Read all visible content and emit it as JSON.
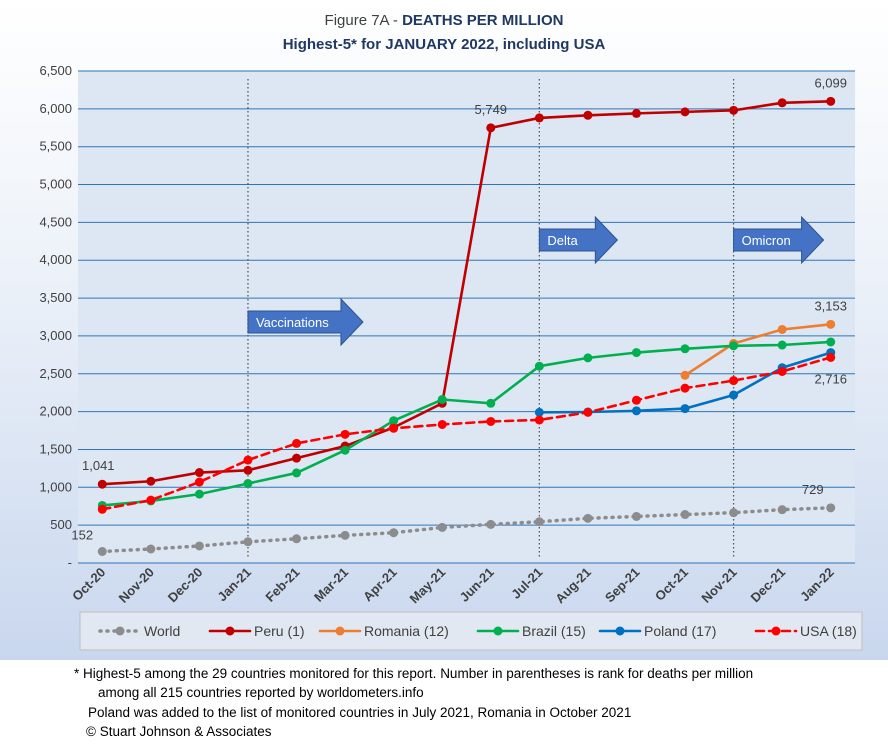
{
  "chart_data": {
    "type": "line",
    "title": "Figure 7A - DEATHS PER MILLION",
    "title_parts": {
      "normal": "Figure 7A - ",
      "bold": "DEATHS PER MILLION"
    },
    "subtitle": "Highest-5* for JANUARY 2022, including USA",
    "categories": [
      "Oct-20",
      "Nov-20",
      "Dec-20",
      "Jan-21",
      "Feb-21",
      "Mar-21",
      "Apr-21",
      "May-21",
      "Jun-21",
      "Jul-21",
      "Aug-21",
      "Sep-21",
      "Oct-21",
      "Nov-21",
      "Dec-21",
      "Jan-22"
    ],
    "y_ticks": [
      "-",
      "500",
      "1,000",
      "1,500",
      "2,000",
      "2,500",
      "3,000",
      "3,500",
      "4,000",
      "4,500",
      "5,000",
      "5,500",
      "6,000",
      "6,500"
    ],
    "ylim": [
      0,
      6500
    ],
    "grid": true,
    "legend_position": "bottom",
    "series": [
      {
        "name": "World",
        "color": "#8c8c8c",
        "style": "dotted",
        "values": [
          152,
          185,
          225,
          280,
          320,
          365,
          400,
          470,
          510,
          545,
          590,
          615,
          640,
          665,
          705,
          729
        ]
      },
      {
        "name": "Peru (1)",
        "color": "#c00000",
        "style": "solid",
        "values": [
          1041,
          1080,
          1195,
          1225,
          1385,
          1545,
          1790,
          2110,
          5749,
          5880,
          5915,
          5940,
          5960,
          5980,
          6080,
          6099
        ]
      },
      {
        "name": "Romania (12)",
        "color": "#ed7d31",
        "style": "solid",
        "values": [
          null,
          null,
          null,
          null,
          null,
          null,
          null,
          null,
          null,
          null,
          null,
          null,
          2480,
          2900,
          3085,
          3153
        ]
      },
      {
        "name": "Brazil (15)",
        "color": "#00b050",
        "style": "solid",
        "values": [
          760,
          820,
          910,
          1050,
          1190,
          1490,
          1880,
          2160,
          2110,
          2600,
          2710,
          2780,
          2830,
          2870,
          2880,
          2920
        ]
      },
      {
        "name": "Poland (17)",
        "color": "#0070c0",
        "style": "solid",
        "values": [
          null,
          null,
          null,
          null,
          null,
          null,
          null,
          null,
          null,
          1990,
          1995,
          2010,
          2040,
          2220,
          2580,
          2780
        ]
      },
      {
        "name": "USA (18)",
        "color": "#ff0000",
        "style": "dashed",
        "values": [
          710,
          830,
          1070,
          1360,
          1580,
          1700,
          1780,
          1830,
          1870,
          1890,
          1990,
          2150,
          2310,
          2410,
          2530,
          2716
        ]
      }
    ],
    "data_labels": [
      {
        "text": "152",
        "series": "World",
        "index": 0
      },
      {
        "text": "729",
        "series": "World",
        "index": 15
      },
      {
        "text": "1,041",
        "series": "Peru (1)",
        "index": 0
      },
      {
        "text": "5,749",
        "series": "Peru (1)",
        "index": 8
      },
      {
        "text": "6,099",
        "series": "Peru (1)",
        "index": 15
      },
      {
        "text": "3,153",
        "series": "Romania (12)",
        "index": 15
      },
      {
        "text": "2,716",
        "series": "USA (18)",
        "index": 15
      }
    ],
    "annotations": [
      {
        "text": "Vaccinations",
        "category": "Jan-21"
      },
      {
        "text": "Delta",
        "category": "Jul-21"
      },
      {
        "text": "Omicron",
        "category": "Nov-21"
      }
    ]
  },
  "footnotes": {
    "line1": "* Highest-5 among the 29 countries monitored for this report. Number in parentheses is rank for deaths per million",
    "line2": "among all 215 countries reported by worldometers.info",
    "line3": "Poland was added to the list of monitored countries in July 2021, Romania in October 2021",
    "line4": "© Stuart Johnson & Associates"
  },
  "colors": {
    "plot_area": "#dde7f4",
    "gridline": "#2e75b6",
    "arrow_fill": "#4472c4"
  }
}
